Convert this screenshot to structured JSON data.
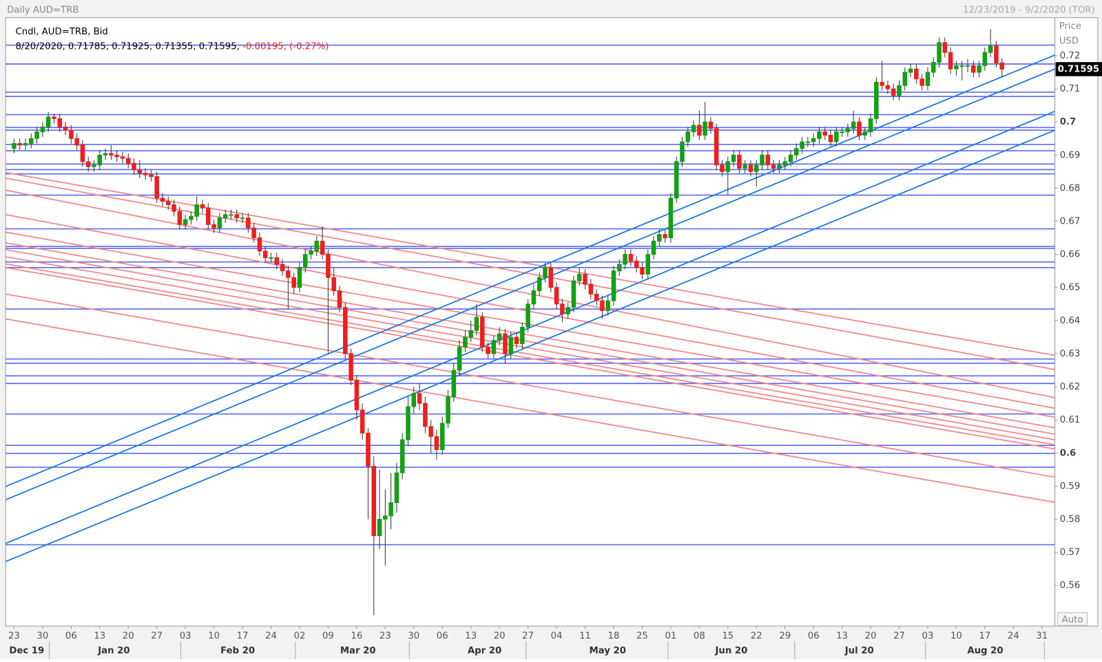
{
  "chart_data": {
    "type": "candlestick",
    "title": "Daily AUD=TRB",
    "subtitle": "12/23/2019 - 9/2/2020 (TOR)",
    "series_name": "Cndl, AUD=TRB, Bid",
    "legend": "8/20/2020, 0.71785, 0.71925, 0.71355, 0.71595,",
    "legend_change": "-0.00195, (-0.27%)",
    "y_label": "Price",
    "y_unit": "USD",
    "scale_mode": "Auto",
    "up_color": "#13a013",
    "down_color": "#f01e1e",
    "level_color": "#5b68f0",
    "support_color": "#1e78e8",
    "resistance_color": "#f28a8a",
    "ylim": [
      0.5477,
      0.7315
    ],
    "yticks": [
      0.56,
      0.57,
      0.58,
      0.59,
      0.6,
      0.61,
      0.62,
      0.63,
      0.64,
      0.65,
      0.66,
      0.67,
      0.68,
      0.69,
      0.7,
      0.71,
      0.72
    ],
    "week_labels": [
      "23",
      "30",
      "06",
      "13",
      "20",
      "27",
      "03",
      "10",
      "17",
      "24",
      "02",
      "09",
      "16",
      "23",
      "30",
      "06",
      "13",
      "20",
      "27",
      "04",
      "11",
      "18",
      "25",
      "01",
      "08",
      "15",
      "22",
      "29",
      "06",
      "13",
      "20",
      "27",
      "03",
      "10",
      "17",
      "24",
      "31"
    ],
    "month_labels": [
      "Dec 19",
      "Jan 20",
      "Feb 20",
      "Mar 20",
      "Apr 20",
      "May 20",
      "Jun 20",
      "Jul 20",
      "Aug 20"
    ],
    "candles": [
      [
        0.692,
        0.695,
        0.6905,
        0.6935
      ],
      [
        0.6935,
        0.695,
        0.6915,
        0.693
      ],
      [
        0.693,
        0.695,
        0.6915,
        0.6935
      ],
      [
        0.6935,
        0.6965,
        0.692,
        0.695
      ],
      [
        0.695,
        0.6985,
        0.6935,
        0.697
      ],
      [
        0.697,
        0.7,
        0.6955,
        0.6985
      ],
      [
        0.6985,
        0.703,
        0.697,
        0.7015
      ],
      [
        0.7015,
        0.7025,
        0.6995,
        0.701
      ],
      [
        0.701,
        0.7025,
        0.697,
        0.6985
      ],
      [
        0.6985,
        0.7,
        0.696,
        0.6975
      ],
      [
        0.6975,
        0.699,
        0.6935,
        0.695
      ],
      [
        0.695,
        0.6965,
        0.6915,
        0.693
      ],
      [
        0.693,
        0.6945,
        0.6865,
        0.688
      ],
      [
        0.688,
        0.6895,
        0.685,
        0.6865
      ],
      [
        0.6865,
        0.6885,
        0.685,
        0.687
      ],
      [
        0.687,
        0.6915,
        0.6855,
        0.69
      ],
      [
        0.69,
        0.692,
        0.6885,
        0.6905
      ],
      [
        0.6905,
        0.693,
        0.6885,
        0.69
      ],
      [
        0.69,
        0.6915,
        0.688,
        0.6895
      ],
      [
        0.6895,
        0.691,
        0.6875,
        0.689
      ],
      [
        0.689,
        0.6905,
        0.686,
        0.6875
      ],
      [
        0.6875,
        0.689,
        0.684,
        0.6855
      ],
      [
        0.6855,
        0.6885,
        0.683,
        0.6845
      ],
      [
        0.6845,
        0.686,
        0.6825,
        0.684
      ],
      [
        0.684,
        0.6855,
        0.682,
        0.6835
      ],
      [
        0.6835,
        0.685,
        0.6755,
        0.677
      ],
      [
        0.677,
        0.6785,
        0.6745,
        0.676
      ],
      [
        0.676,
        0.6775,
        0.6735,
        0.675
      ],
      [
        0.675,
        0.6765,
        0.6715,
        0.673
      ],
      [
        0.673,
        0.6745,
        0.6675,
        0.669
      ],
      [
        0.669,
        0.672,
        0.6675,
        0.6705
      ],
      [
        0.6705,
        0.673,
        0.669,
        0.6715
      ],
      [
        0.6715,
        0.6775,
        0.67,
        0.675
      ],
      [
        0.675,
        0.6765,
        0.6725,
        0.674
      ],
      [
        0.674,
        0.6755,
        0.6675,
        0.669
      ],
      [
        0.669,
        0.6705,
        0.6665,
        0.668
      ],
      [
        0.668,
        0.6725,
        0.6665,
        0.671
      ],
      [
        0.671,
        0.6735,
        0.6695,
        0.672
      ],
      [
        0.672,
        0.6735,
        0.6705,
        0.672
      ],
      [
        0.672,
        0.6735,
        0.6695,
        0.671
      ],
      [
        0.671,
        0.6725,
        0.6695,
        0.671
      ],
      [
        0.671,
        0.6725,
        0.6665,
        0.668
      ],
      [
        0.668,
        0.6695,
        0.6635,
        0.665
      ],
      [
        0.665,
        0.6665,
        0.6595,
        0.661
      ],
      [
        0.661,
        0.6625,
        0.6575,
        0.659
      ],
      [
        0.659,
        0.6605,
        0.6575,
        0.659
      ],
      [
        0.659,
        0.6605,
        0.6555,
        0.657
      ],
      [
        0.657,
        0.6585,
        0.6535,
        0.655
      ],
      [
        0.655,
        0.6565,
        0.6435,
        0.653
      ],
      [
        0.653,
        0.6545,
        0.648,
        0.65
      ],
      [
        0.65,
        0.6575,
        0.6485,
        0.656
      ],
      [
        0.656,
        0.6615,
        0.6545,
        0.66
      ],
      [
        0.66,
        0.6625,
        0.6585,
        0.661
      ],
      [
        0.661,
        0.6655,
        0.6595,
        0.664
      ],
      [
        0.664,
        0.6685,
        0.6585,
        0.66
      ],
      [
        0.66,
        0.6615,
        0.63,
        0.653
      ],
      [
        0.653,
        0.656,
        0.6475,
        0.649
      ],
      [
        0.649,
        0.6505,
        0.6425,
        0.644
      ],
      [
        0.644,
        0.6455,
        0.6285,
        0.63
      ],
      [
        0.63,
        0.6315,
        0.6205,
        0.622
      ],
      [
        0.622,
        0.6235,
        0.61,
        0.613
      ],
      [
        0.613,
        0.615,
        0.604,
        0.606
      ],
      [
        0.606,
        0.6075,
        0.58,
        0.596
      ],
      [
        0.596,
        0.599,
        0.551,
        0.575
      ],
      [
        0.575,
        0.595,
        0.571,
        0.58
      ],
      [
        0.58,
        0.589,
        0.566,
        0.581
      ],
      [
        0.581,
        0.594,
        0.577,
        0.585
      ],
      [
        0.585,
        0.597,
        0.582,
        0.594
      ],
      [
        0.594,
        0.606,
        0.592,
        0.604
      ],
      [
        0.604,
        0.617,
        0.602,
        0.614
      ],
      [
        0.614,
        0.62,
        0.612,
        0.618
      ],
      [
        0.618,
        0.621,
        0.613,
        0.615
      ],
      [
        0.615,
        0.617,
        0.606,
        0.608
      ],
      [
        0.608,
        0.61,
        0.6,
        0.605
      ],
      [
        0.605,
        0.607,
        0.598,
        0.601
      ],
      [
        0.601,
        0.611,
        0.5995,
        0.609
      ],
      [
        0.609,
        0.619,
        0.6075,
        0.617
      ],
      [
        0.617,
        0.627,
        0.6155,
        0.625
      ],
      [
        0.625,
        0.634,
        0.6235,
        0.632
      ],
      [
        0.632,
        0.637,
        0.6305,
        0.635
      ],
      [
        0.635,
        0.64,
        0.6335,
        0.637
      ],
      [
        0.637,
        0.645,
        0.6355,
        0.641
      ],
      [
        0.641,
        0.6425,
        0.6305,
        0.632
      ],
      [
        0.632,
        0.6335,
        0.6285,
        0.63
      ],
      [
        0.63,
        0.6355,
        0.6285,
        0.634
      ],
      [
        0.634,
        0.638,
        0.6325,
        0.636
      ],
      [
        0.636,
        0.6375,
        0.627,
        0.63
      ],
      [
        0.63,
        0.6365,
        0.6285,
        0.635
      ],
      [
        0.635,
        0.6365,
        0.6315,
        0.633
      ],
      [
        0.633,
        0.6395,
        0.6315,
        0.638
      ],
      [
        0.638,
        0.6465,
        0.6365,
        0.645
      ],
      [
        0.645,
        0.651,
        0.6435,
        0.649
      ],
      [
        0.649,
        0.6545,
        0.6475,
        0.653
      ],
      [
        0.653,
        0.6575,
        0.6515,
        0.656
      ],
      [
        0.656,
        0.6575,
        0.6485,
        0.65
      ],
      [
        0.65,
        0.6515,
        0.6435,
        0.645
      ],
      [
        0.645,
        0.6465,
        0.6395,
        0.642
      ],
      [
        0.642,
        0.6455,
        0.6405,
        0.644
      ],
      [
        0.644,
        0.6535,
        0.6425,
        0.652
      ],
      [
        0.652,
        0.656,
        0.6505,
        0.654
      ],
      [
        0.654,
        0.6555,
        0.6495,
        0.651
      ],
      [
        0.651,
        0.6525,
        0.6465,
        0.648
      ],
      [
        0.648,
        0.6495,
        0.6445,
        0.646
      ],
      [
        0.646,
        0.6475,
        0.6405,
        0.643
      ],
      [
        0.643,
        0.6475,
        0.6415,
        0.646
      ],
      [
        0.646,
        0.6565,
        0.6445,
        0.655
      ],
      [
        0.655,
        0.6585,
        0.6535,
        0.657
      ],
      [
        0.657,
        0.6615,
        0.6555,
        0.66
      ],
      [
        0.66,
        0.6615,
        0.6565,
        0.658
      ],
      [
        0.658,
        0.6595,
        0.6545,
        0.656
      ],
      [
        0.656,
        0.6575,
        0.6525,
        0.654
      ],
      [
        0.654,
        0.6615,
        0.6525,
        0.66
      ],
      [
        0.66,
        0.6655,
        0.6585,
        0.664
      ],
      [
        0.664,
        0.6675,
        0.6625,
        0.666
      ],
      [
        0.666,
        0.6675,
        0.6635,
        0.665
      ],
      [
        0.665,
        0.6785,
        0.6635,
        0.677
      ],
      [
        0.677,
        0.6895,
        0.6755,
        0.688
      ],
      [
        0.688,
        0.6955,
        0.6865,
        0.694
      ],
      [
        0.694,
        0.6985,
        0.6925,
        0.697
      ],
      [
        0.697,
        0.7005,
        0.6955,
        0.699
      ],
      [
        0.699,
        0.7035,
        0.6945,
        0.696
      ],
      [
        0.696,
        0.706,
        0.6945,
        0.7
      ],
      [
        0.7,
        0.7015,
        0.6965,
        0.698
      ],
      [
        0.698,
        0.6995,
        0.6855,
        0.687
      ],
      [
        0.687,
        0.6885,
        0.6835,
        0.685
      ],
      [
        0.685,
        0.6895,
        0.678,
        0.688
      ],
      [
        0.688,
        0.6915,
        0.6865,
        0.69
      ],
      [
        0.69,
        0.6915,
        0.6845,
        0.686
      ],
      [
        0.686,
        0.6885,
        0.6845,
        0.687
      ],
      [
        0.687,
        0.6885,
        0.6835,
        0.685
      ],
      [
        0.685,
        0.6885,
        0.6805,
        0.687
      ],
      [
        0.687,
        0.6915,
        0.6855,
        0.69
      ],
      [
        0.69,
        0.6915,
        0.6855,
        0.687
      ],
      [
        0.687,
        0.6885,
        0.6845,
        0.686
      ],
      [
        0.686,
        0.6885,
        0.6845,
        0.687
      ],
      [
        0.687,
        0.6895,
        0.6855,
        0.688
      ],
      [
        0.688,
        0.6915,
        0.6865,
        0.69
      ],
      [
        0.69,
        0.6935,
        0.6885,
        0.692
      ],
      [
        0.692,
        0.6955,
        0.6905,
        0.694
      ],
      [
        0.694,
        0.6955,
        0.6925,
        0.694
      ],
      [
        0.694,
        0.6965,
        0.6925,
        0.695
      ],
      [
        0.695,
        0.6985,
        0.6935,
        0.697
      ],
      [
        0.697,
        0.6985,
        0.6945,
        0.696
      ],
      [
        0.696,
        0.6975,
        0.6925,
        0.694
      ],
      [
        0.694,
        0.6985,
        0.6925,
        0.697
      ],
      [
        0.697,
        0.6985,
        0.6955,
        0.697
      ],
      [
        0.697,
        0.6995,
        0.6955,
        0.698
      ],
      [
        0.698,
        0.7035,
        0.6965,
        0.7
      ],
      [
        0.7,
        0.7015,
        0.6945,
        0.696
      ],
      [
        0.696,
        0.6985,
        0.6945,
        0.697
      ],
      [
        0.697,
        0.7025,
        0.6955,
        0.701
      ],
      [
        0.701,
        0.7135,
        0.6995,
        0.712
      ],
      [
        0.712,
        0.7185,
        0.7095,
        0.711
      ],
      [
        0.711,
        0.7125,
        0.7085,
        0.71
      ],
      [
        0.71,
        0.7115,
        0.7065,
        0.708
      ],
      [
        0.708,
        0.7125,
        0.7065,
        0.711
      ],
      [
        0.711,
        0.7165,
        0.7095,
        0.715
      ],
      [
        0.715,
        0.7175,
        0.7135,
        0.716
      ],
      [
        0.716,
        0.7175,
        0.7115,
        0.713
      ],
      [
        0.713,
        0.7145,
        0.7095,
        0.711
      ],
      [
        0.711,
        0.7165,
        0.7095,
        0.715
      ],
      [
        0.715,
        0.7195,
        0.7135,
        0.718
      ],
      [
        0.718,
        0.7255,
        0.7165,
        0.724
      ],
      [
        0.724,
        0.7255,
        0.7195,
        0.721
      ],
      [
        0.721,
        0.7225,
        0.7145,
        0.716
      ],
      [
        0.716,
        0.7185,
        0.714,
        0.717
      ],
      [
        0.717,
        0.7185,
        0.7125,
        0.717
      ],
      [
        0.717,
        0.719,
        0.715,
        0.717
      ],
      [
        0.717,
        0.7185,
        0.7135,
        0.715
      ],
      [
        0.715,
        0.7185,
        0.7135,
        0.717
      ],
      [
        0.717,
        0.7225,
        0.7155,
        0.721
      ],
      [
        0.721,
        0.728,
        0.7195,
        0.723
      ],
      [
        0.723,
        0.7245,
        0.7165,
        0.71785
      ],
      [
        0.71785,
        0.71925,
        0.71355,
        0.71595
      ]
    ],
    "levels": [
      0.7232,
      0.7175,
      0.709,
      0.7077,
      0.7022,
      0.6983,
      0.6975,
      0.6932,
      0.6913,
      0.6873,
      0.6856,
      0.6843,
      0.6779,
      0.6677,
      0.6624,
      0.6618,
      0.6577,
      0.656,
      0.6435,
      0.6284,
      0.6271,
      0.6233,
      0.621,
      0.6118,
      0.6023,
      0.5999,
      0.5957,
      0.5723
    ],
    "support_lines": [
      {
        "y_start": 0.5899,
        "y_end": 0.7202
      },
      {
        "y_start": 0.5859,
        "y_end": 0.716
      },
      {
        "y_start": 0.5727,
        "y_end": 0.7032
      },
      {
        "y_start": 0.5672,
        "y_end": 0.6975
      }
    ],
    "resistance_lines": [
      {
        "y_start": 0.6847,
        "y_end": 0.6295
      },
      {
        "y_start": 0.683,
        "y_end": 0.6252
      },
      {
        "y_start": 0.6794,
        "y_end": 0.6167
      },
      {
        "y_start": 0.672,
        "y_end": 0.6135
      },
      {
        "y_start": 0.6667,
        "y_end": 0.6108
      },
      {
        "y_start": 0.6635,
        "y_end": 0.6076
      },
      {
        "y_start": 0.6614,
        "y_end": 0.6057
      },
      {
        "y_start": 0.6593,
        "y_end": 0.604
      },
      {
        "y_start": 0.6571,
        "y_end": 0.6025
      },
      {
        "y_start": 0.656,
        "y_end": 0.6012
      },
      {
        "y_start": 0.648,
        "y_end": 0.5927
      },
      {
        "y_start": 0.6405,
        "y_end": 0.5851
      }
    ]
  }
}
